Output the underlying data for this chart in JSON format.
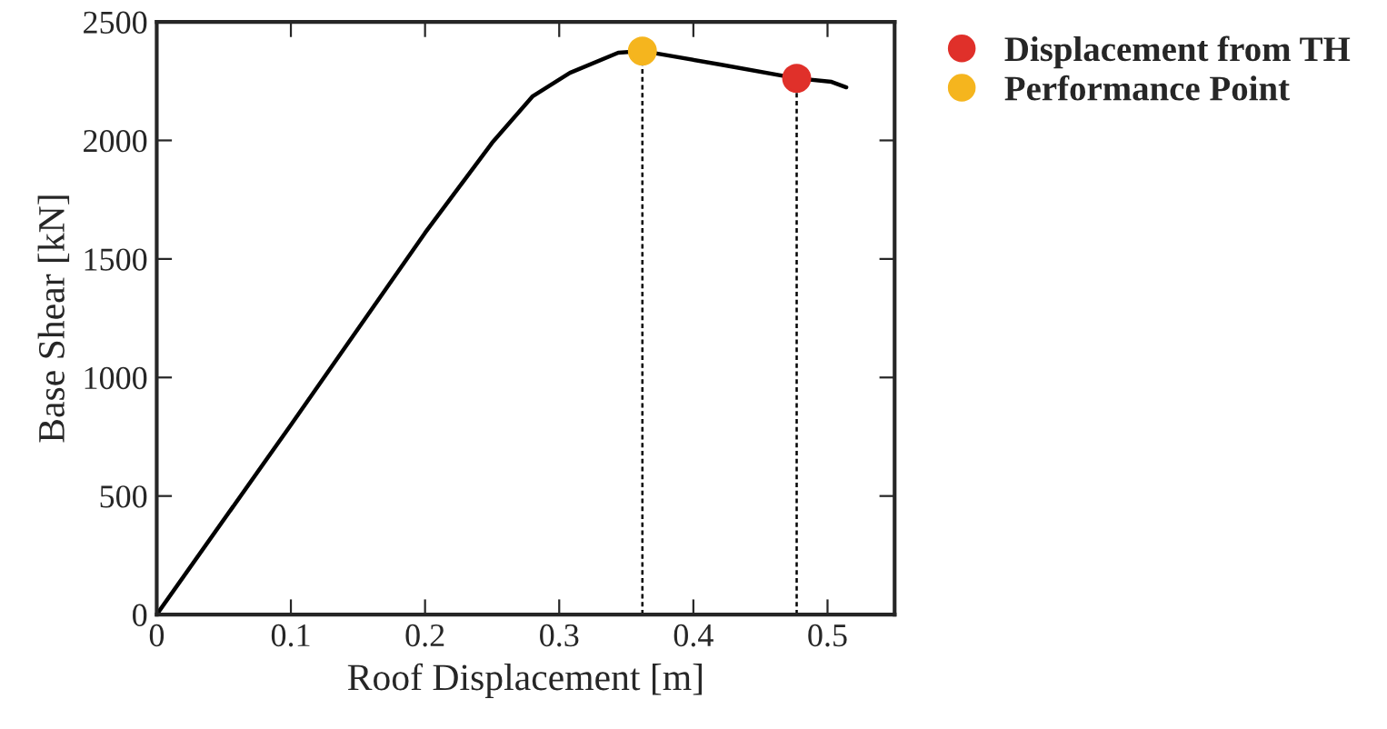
{
  "chart_data": {
    "type": "line",
    "xlabel": "Roof Displacement [m]",
    "ylabel": "Base Shear [kN]",
    "xlim": [
      0,
      0.55
    ],
    "ylim": [
      0,
      2500
    ],
    "xticks": [
      0,
      0.1,
      0.2,
      0.3,
      0.4,
      0.5
    ],
    "yticks": [
      0,
      500,
      1000,
      1500,
      2000,
      2500
    ],
    "grid": false,
    "legend": "top right",
    "series": [
      {
        "color": "#000000",
        "line_style": "solid",
        "x": [
          0,
          0.1,
          0.2,
          0.25,
          0.28,
          0.308,
          0.344,
          0.362,
          0.42,
          0.477,
          0.503,
          0.514
        ],
        "values": [
          0,
          800,
          1610,
          1990,
          2185,
          2285,
          2370,
          2377,
          2320,
          2262,
          2247,
          2224
        ]
      },
      {
        "type": "line",
        "color": "#000000",
        "line_style": "dotted",
        "x": [
          0.362,
          0.362
        ],
        "values": [
          0,
          2377
        ]
      },
      {
        "type": "line",
        "color": "#000000",
        "line_style": "dotted",
        "x": [
          0.477,
          0.477
        ],
        "values": [
          0,
          2262
        ]
      },
      {
        "type": "scatter",
        "name": "Displacement from TH",
        "color": "#e0302a",
        "marker": "circle",
        "x": [
          0.477
        ],
        "values": [
          2262
        ]
      },
      {
        "type": "scatter",
        "name": "Performance Point",
        "color": "#f5b51e",
        "marker": "circle",
        "x": [
          0.362
        ],
        "values": [
          2377
        ]
      }
    ]
  }
}
